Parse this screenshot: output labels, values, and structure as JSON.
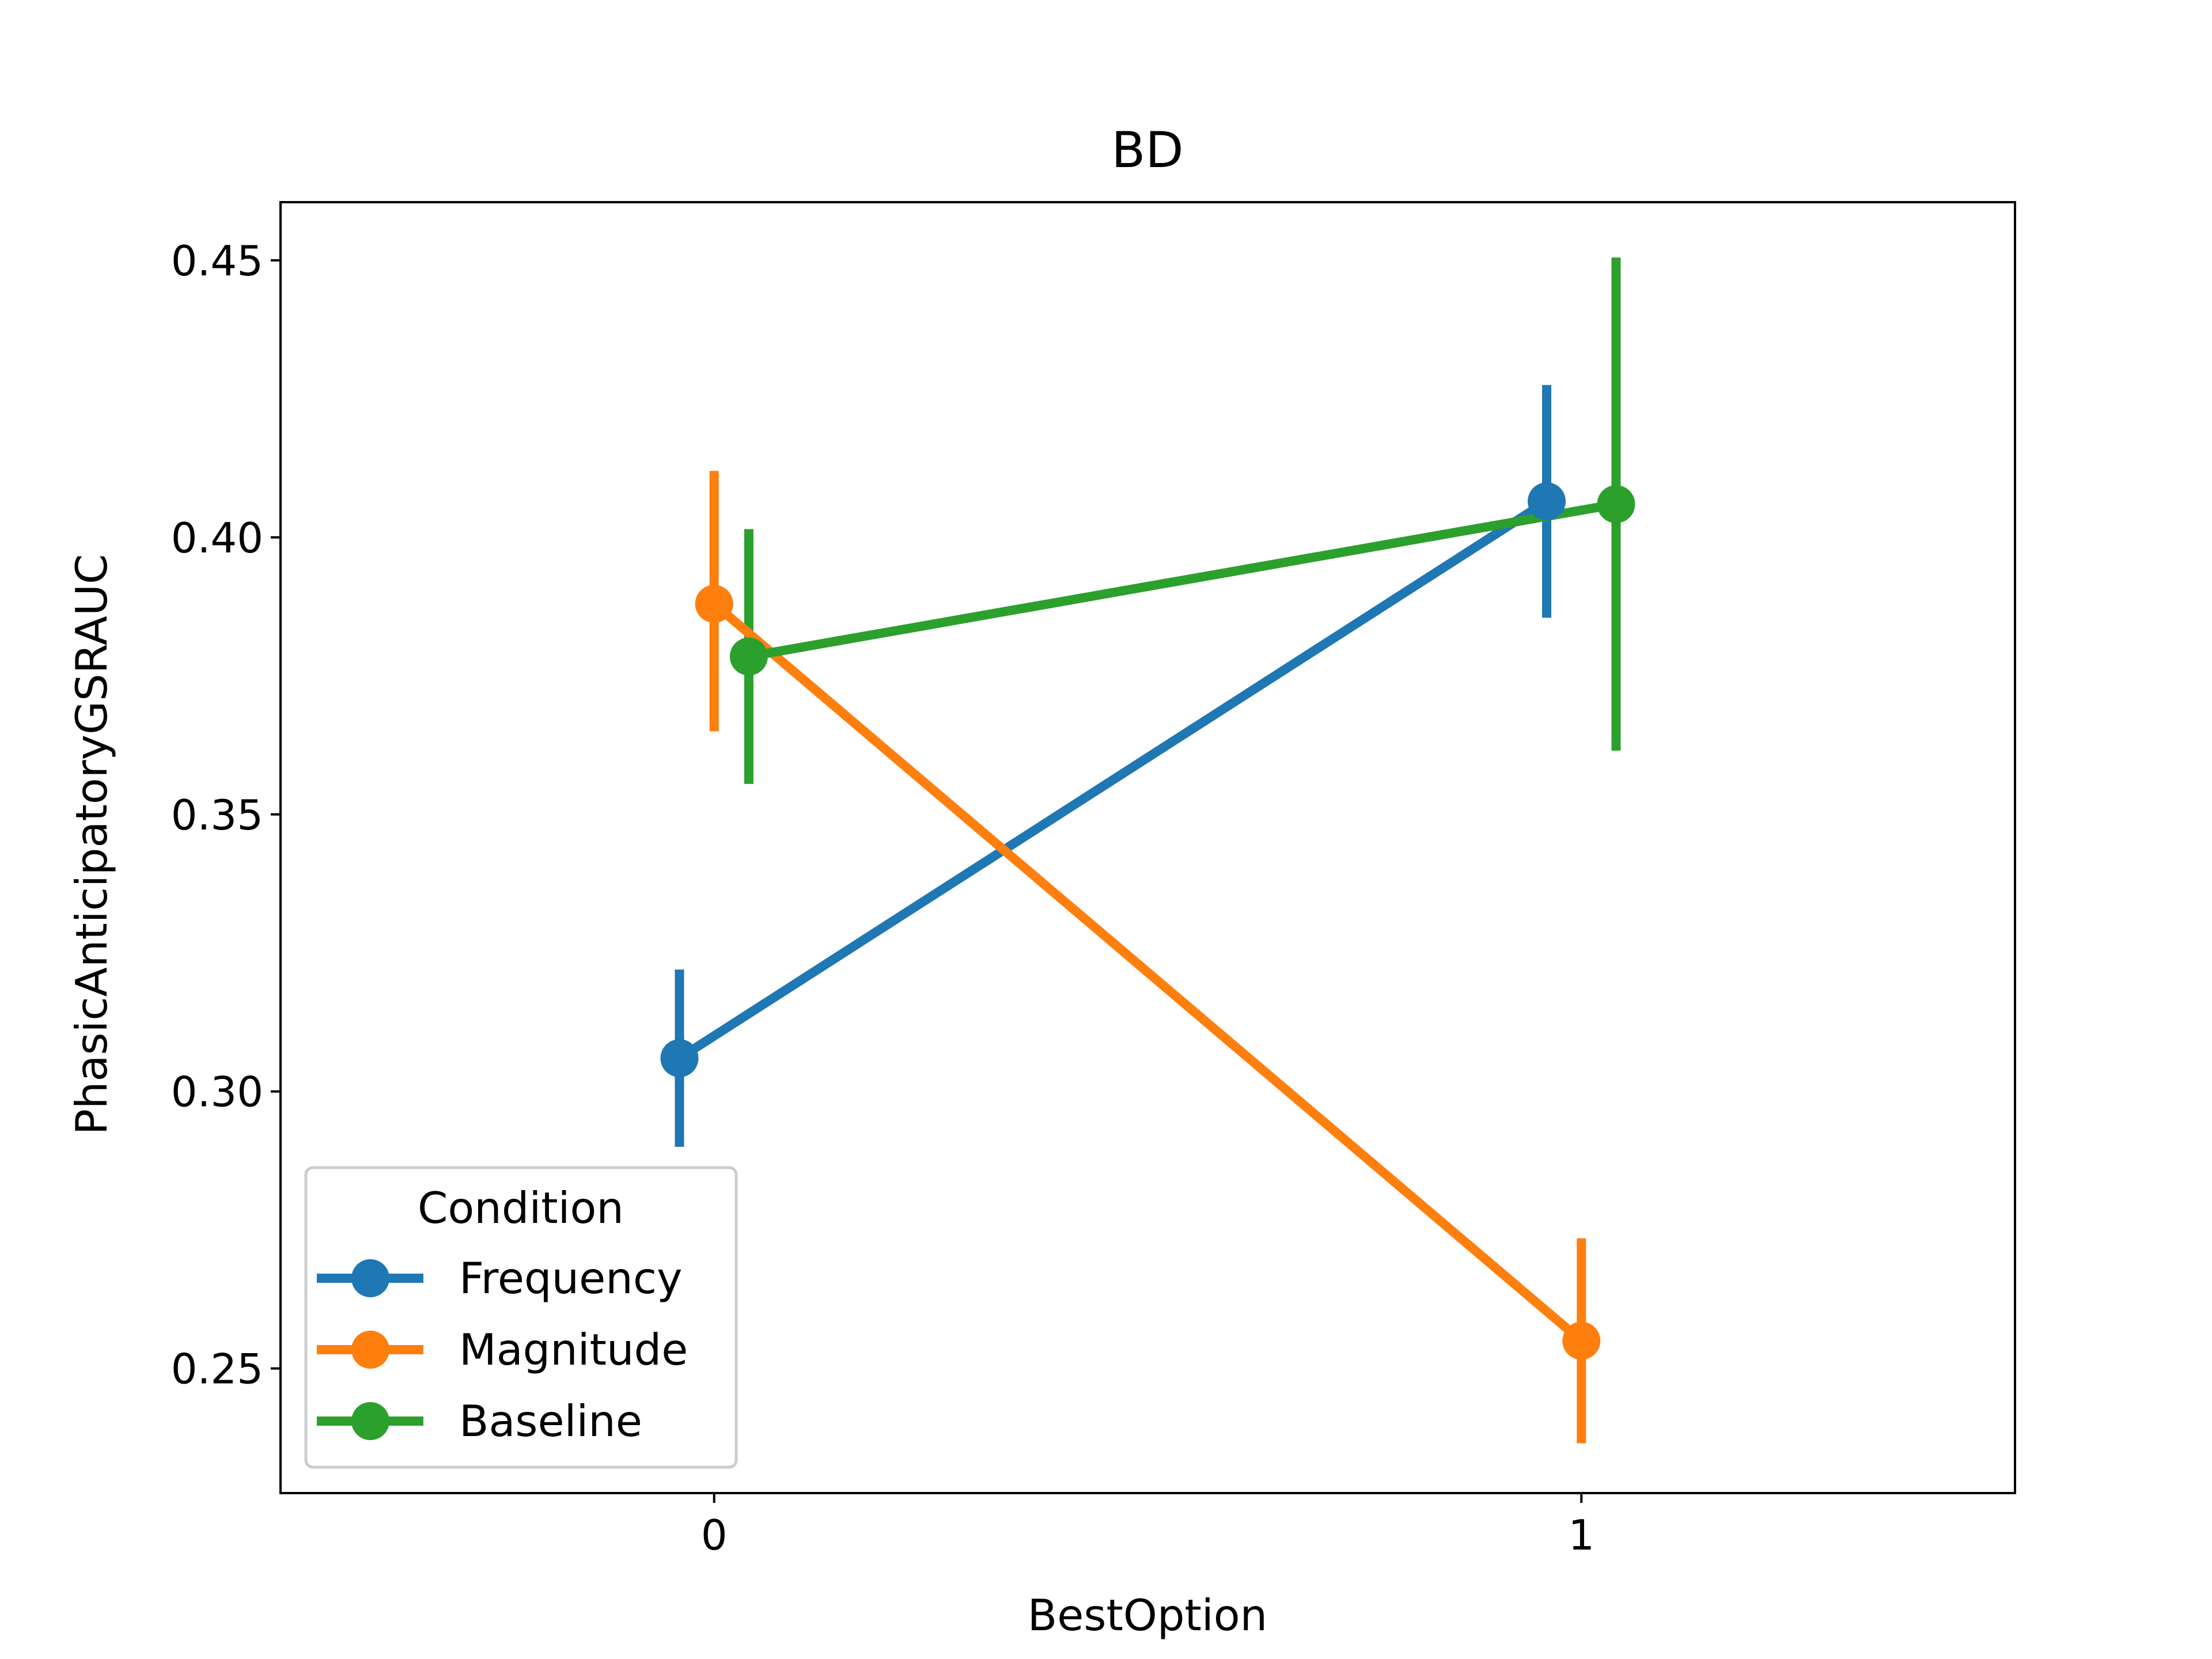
{
  "chart_data": {
    "type": "line",
    "title": "BD",
    "xlabel": "BestOption",
    "ylabel": "PhasicAnticipatoryGSRAUC",
    "categories": [
      "0",
      "1"
    ],
    "xlim": [
      -0.5,
      1.5
    ],
    "ylim": [
      0.2275,
      0.4605
    ],
    "yticks": [
      0.25,
      0.3,
      0.35,
      0.4,
      0.45
    ],
    "ytick_labels": [
      "0.25",
      "0.30",
      "0.35",
      "0.40",
      "0.45"
    ],
    "grid": false,
    "legend": {
      "title": "Condition",
      "placement": "lower-left"
    },
    "series": [
      {
        "name": "Frequency",
        "color": "#1f77b4",
        "values": [
          0.306,
          0.4065
        ],
        "ci_low": [
          0.29,
          0.3855
        ],
        "ci_high": [
          0.322,
          0.4275
        ]
      },
      {
        "name": "Magnitude",
        "color": "#ff7f0e",
        "values": [
          0.388,
          0.255
        ],
        "ci_low": [
          0.365,
          0.2365
        ],
        "ci_high": [
          0.412,
          0.2735
        ]
      },
      {
        "name": "Baseline",
        "color": "#2ca02c",
        "values": [
          0.3785,
          0.406
        ],
        "ci_low": [
          0.3555,
          0.3615
        ],
        "ci_high": [
          0.4015,
          0.4505
        ]
      }
    ]
  }
}
